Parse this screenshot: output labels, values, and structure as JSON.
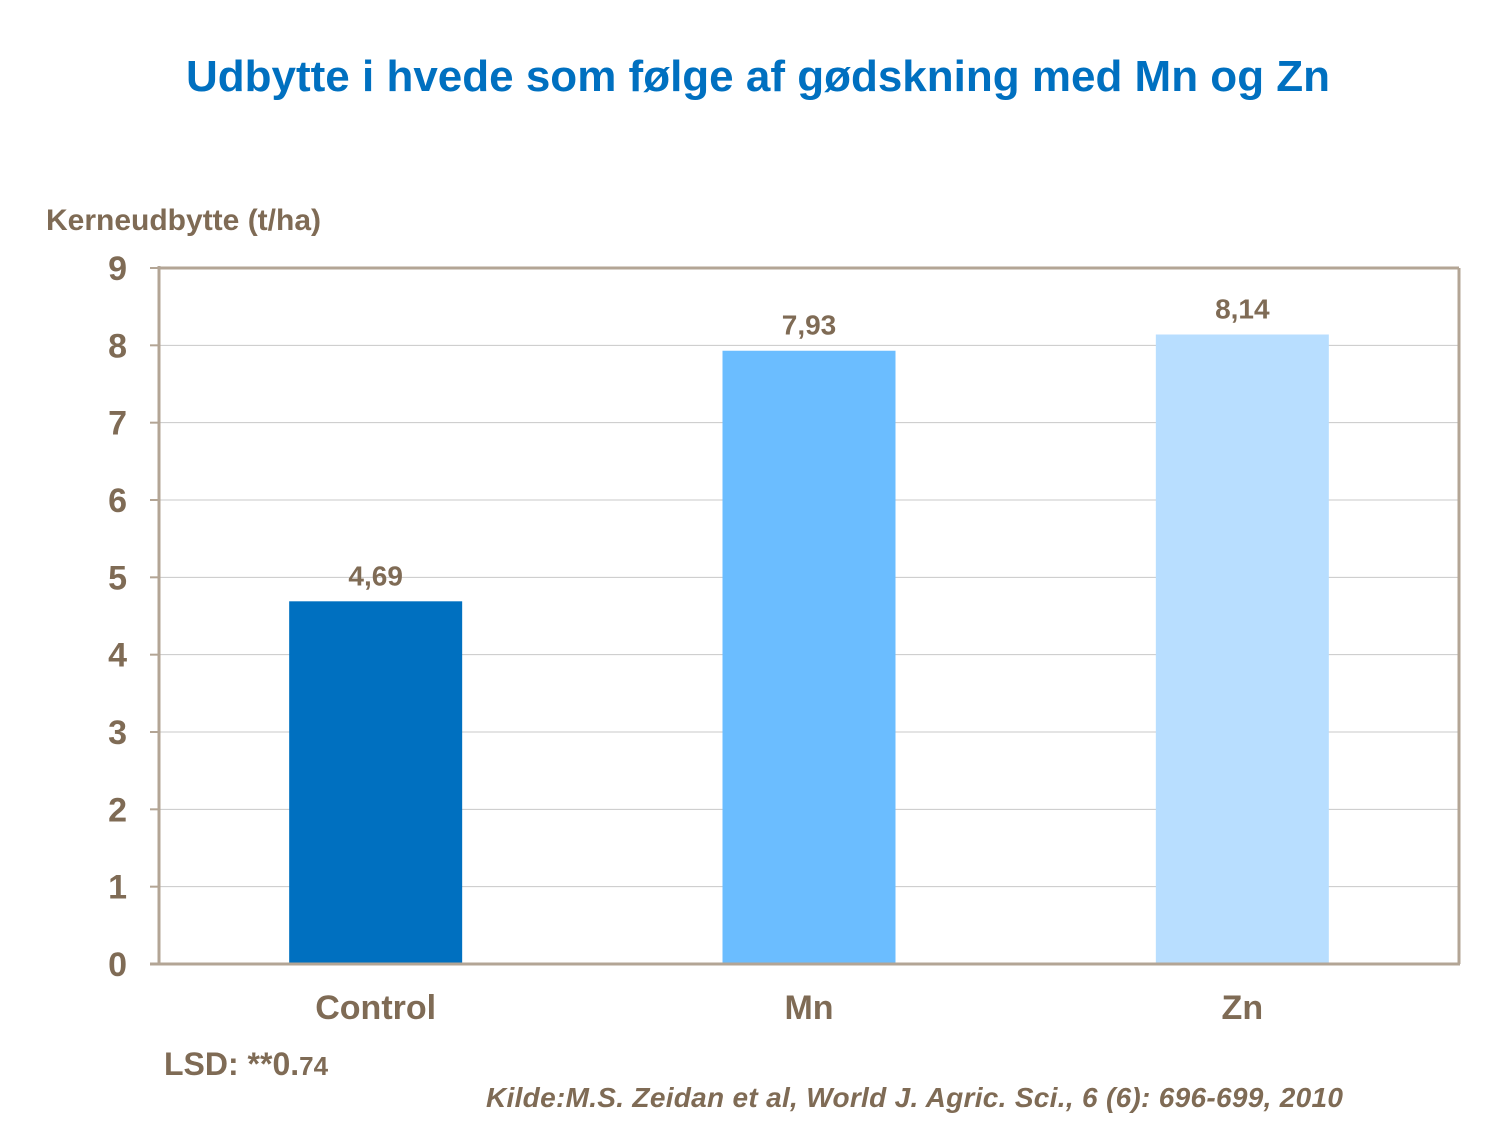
{
  "chart_data": {
    "type": "bar",
    "title": "Udbytte i hvede som følge af gødskning med Mn og Zn",
    "ylabel": "Kerneudbytte (t/ha)",
    "xlabel": "",
    "categories": [
      "Control",
      "Mn",
      "Zn"
    ],
    "values": [
      4.69,
      7.93,
      8.14
    ],
    "value_labels": [
      "4,69",
      "7,93",
      "8,14"
    ],
    "bar_colors": [
      "#0070c0",
      "#6bbdff",
      "#b8deff"
    ],
    "ylim": [
      0,
      9
    ],
    "yticks": [
      0,
      1,
      2,
      3,
      4,
      5,
      6,
      7,
      8,
      9
    ],
    "grid": true
  },
  "annotations": {
    "lsd_main": "LSD: **0.",
    "lsd_small": "74",
    "source": "Kilde:M.S. Zeidan et al, World J. Agric. Sci., 6 (6): 696-699, 2010"
  },
  "colors": {
    "title": "#0070c0",
    "text": "#7f6b55",
    "axis": "#b3a595",
    "grid": "#c8c8c8"
  }
}
